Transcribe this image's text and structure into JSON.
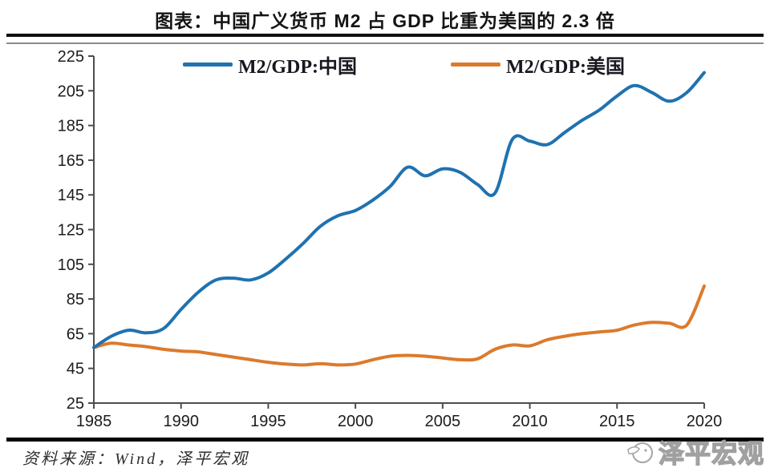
{
  "header": {
    "title": "图表：中国广义货币 M2 占 GDP 比重为美国的 2.3 倍"
  },
  "legend": [
    {
      "label": "M2/GDP:中国",
      "color": "#1f72b0"
    },
    {
      "label": "M2/GDP:美国",
      "color": "#dc7a2c"
    }
  ],
  "footer": {
    "source": "资料来源：Wind，泽平宏观",
    "watermark": "泽平宏观"
  },
  "colors": {
    "china_line": "#1f72b0",
    "us_line": "#dc7a2c",
    "axis": "#4d4d4d",
    "rule_black": "#0f0f0f"
  },
  "chart_data": {
    "type": "line",
    "title": "图表：中国广义货币 M2 占 GDP 比重为美国的 2.3 倍",
    "xlabel": "",
    "ylabel": "",
    "x": [
      1985,
      1986,
      1987,
      1988,
      1989,
      1990,
      1991,
      1992,
      1993,
      1994,
      1995,
      1996,
      1997,
      1998,
      1999,
      2000,
      2001,
      2002,
      2003,
      2004,
      2005,
      2006,
      2007,
      2008,
      2009,
      2010,
      2011,
      2012,
      2013,
      2014,
      2015,
      2016,
      2017,
      2018,
      2019,
      2020
    ],
    "series": [
      {
        "name": "M2/GDP:中国",
        "color": "#1f72b0",
        "values": [
          57,
          63.5,
          67,
          65.5,
          68,
          79,
          89,
          96,
          97,
          96,
          100,
          108,
          117,
          127,
          133,
          136,
          142,
          150,
          161,
          156,
          160,
          158,
          151,
          146,
          177,
          176,
          174,
          181,
          188,
          194,
          202,
          208,
          204,
          199,
          204,
          215.5
        ]
      },
      {
        "name": "M2/GDP:美国",
        "color": "#dc7a2c",
        "values": [
          57,
          59.5,
          58.5,
          57.5,
          56,
          55,
          54.5,
          53,
          51.5,
          50,
          48.5,
          47.5,
          47,
          47.7,
          47,
          47.5,
          50,
          52,
          52.5,
          52,
          51,
          50,
          50.5,
          56,
          58.5,
          58,
          61.5,
          63.5,
          65,
          66,
          67,
          70,
          71.5,
          71,
          70,
          92.5
        ]
      }
    ],
    "xticks": [
      1985,
      1990,
      1995,
      2000,
      2005,
      2010,
      2015,
      2020
    ],
    "yticks": [
      25,
      45,
      65,
      85,
      105,
      125,
      145,
      165,
      185,
      205,
      225
    ],
    "xlim": [
      1985,
      2020
    ],
    "ylim": [
      25,
      225
    ],
    "grid": false,
    "legend_position": "top"
  }
}
